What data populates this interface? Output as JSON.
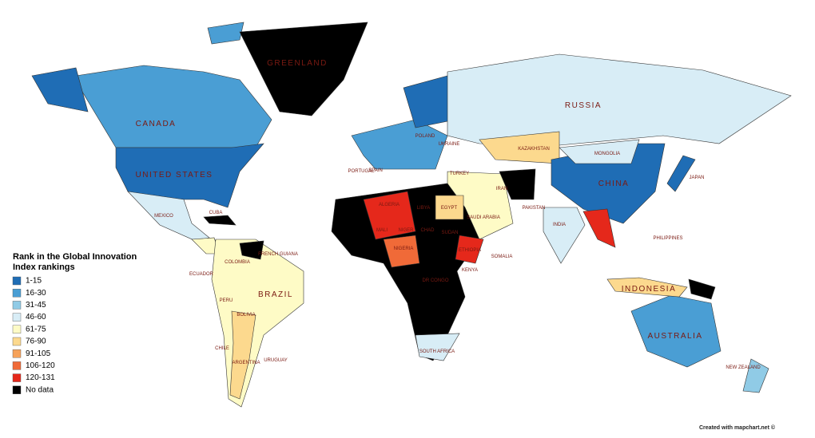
{
  "legend": {
    "title": "Rank in the Global Innovation Index rankings",
    "items": [
      {
        "label": "1-15",
        "color": "#1f6db5"
      },
      {
        "label": "16-30",
        "color": "#4a9ed4"
      },
      {
        "label": "31-45",
        "color": "#90cbe6"
      },
      {
        "label": "46-60",
        "color": "#d8edf6"
      },
      {
        "label": "61-75",
        "color": "#fefbc6"
      },
      {
        "label": "76-90",
        "color": "#fcd98e"
      },
      {
        "label": "91-105",
        "color": "#f6a25a"
      },
      {
        "label": "106-120",
        "color": "#f06a38"
      },
      {
        "label": "120-131",
        "color": "#e5281b"
      },
      {
        "label": "No data",
        "color": "#000000"
      }
    ]
  },
  "labels": [
    "GREENLAND",
    "CANADA",
    "UNITED STATES",
    "MEXICO",
    "RUSSIA",
    "KAZAKHSTAN",
    "MONGOLIA",
    "CHINA",
    "INDIA",
    "IRAN",
    "TURKEY",
    "SAUDI ARABIA",
    "PAKISTAN",
    "EGYPT",
    "ALGERIA",
    "LIBYA",
    "MALI",
    "NIGER",
    "CHAD",
    "SUDAN",
    "NIGERIA",
    "ETHIOPIA",
    "SOMALIA",
    "KENYA",
    "DR CONGO",
    "SOUTH AFRICA",
    "BRAZIL",
    "COLOMBIA",
    "PERU",
    "BOLIVIA",
    "CHILE",
    "ARGENTINA",
    "URUGUAY",
    "ECUADOR",
    "UKRAINE",
    "POLAND",
    "SPAIN",
    "PORTUGAL",
    "JAPAN",
    "PHILIPPINES",
    "INDONESIA",
    "AUSTRALIA",
    "NEW ZEALAND",
    "CUBA",
    "FRENCH GUIANA"
  ],
  "credit": "Created with mapchart.net ©"
}
